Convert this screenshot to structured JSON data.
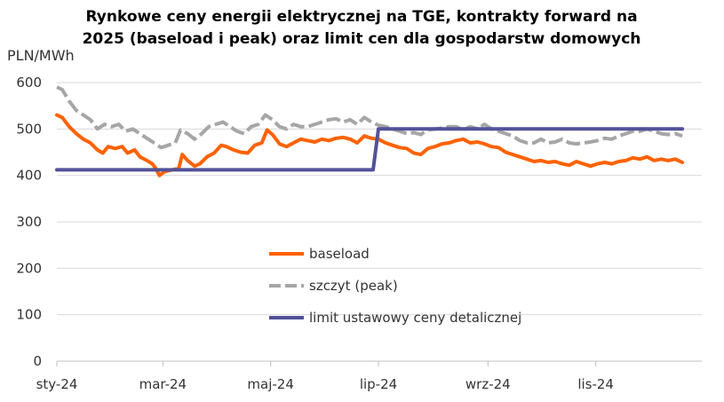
{
  "chart_data": {
    "type": "line",
    "title_lines": [
      "Rynkowe ceny energii elektrycznej na TGE, kontrakty forward na",
      "2025 (baseload i peak) oraz limit cen dla gospodarstw domowych"
    ],
    "ylabel": "PLN/MWh",
    "ylim": [
      0,
      600
    ],
    "yticks": [
      "0",
      "100",
      "200",
      "300",
      "400",
      "500",
      "600"
    ],
    "xlim": [
      "2024-01-01",
      "2024-12-31"
    ],
    "xticks": [
      {
        "label": "sty-24",
        "date": "2024-01-01"
      },
      {
        "label": "mar-24",
        "date": "2024-03-01"
      },
      {
        "label": "maj-24",
        "date": "2024-05-01"
      },
      {
        "label": "lip-24",
        "date": "2024-07-01"
      },
      {
        "label": "wrz-24",
        "date": "2024-09-01"
      },
      {
        "label": "lis-24",
        "date": "2024-11-01"
      }
    ],
    "legend_position": "center",
    "grid": "horizontal",
    "series": [
      {
        "name": "baseload",
        "color": "#ff6200",
        "style": "solid",
        "points": [
          [
            "2024-01-01",
            530
          ],
          [
            "2024-01-04",
            525
          ],
          [
            "2024-01-08",
            505
          ],
          [
            "2024-01-12",
            490
          ],
          [
            "2024-01-16",
            478
          ],
          [
            "2024-01-20",
            470
          ],
          [
            "2024-01-24",
            455
          ],
          [
            "2024-01-27",
            448
          ],
          [
            "2024-01-30",
            462
          ],
          [
            "2024-02-03",
            458
          ],
          [
            "2024-02-07",
            462
          ],
          [
            "2024-02-10",
            448
          ],
          [
            "2024-02-14",
            455
          ],
          [
            "2024-02-17",
            440
          ],
          [
            "2024-02-21",
            432
          ],
          [
            "2024-02-24",
            425
          ],
          [
            "2024-02-26",
            415
          ],
          [
            "2024-02-28",
            400
          ],
          [
            "2024-03-02",
            408
          ],
          [
            "2024-03-06",
            412
          ],
          [
            "2024-03-10",
            415
          ],
          [
            "2024-03-12",
            445
          ],
          [
            "2024-03-15",
            432
          ],
          [
            "2024-03-19",
            420
          ],
          [
            "2024-03-22",
            425
          ],
          [
            "2024-03-26",
            440
          ],
          [
            "2024-03-30",
            448
          ],
          [
            "2024-04-03",
            465
          ],
          [
            "2024-04-06",
            462
          ],
          [
            "2024-04-10",
            455
          ],
          [
            "2024-04-14",
            450
          ],
          [
            "2024-04-18",
            448
          ],
          [
            "2024-04-22",
            465
          ],
          [
            "2024-04-26",
            470
          ],
          [
            "2024-04-29",
            498
          ],
          [
            "2024-05-02",
            488
          ],
          [
            "2024-05-06",
            468
          ],
          [
            "2024-05-10",
            462
          ],
          [
            "2024-05-14",
            470
          ],
          [
            "2024-05-18",
            478
          ],
          [
            "2024-05-22",
            475
          ],
          [
            "2024-05-26",
            472
          ],
          [
            "2024-05-30",
            478
          ],
          [
            "2024-06-03",
            475
          ],
          [
            "2024-06-07",
            480
          ],
          [
            "2024-06-11",
            482
          ],
          [
            "2024-06-15",
            478
          ],
          [
            "2024-06-19",
            470
          ],
          [
            "2024-06-23",
            485
          ],
          [
            "2024-06-27",
            480
          ],
          [
            "2024-07-01",
            478
          ],
          [
            "2024-07-05",
            470
          ],
          [
            "2024-07-09",
            465
          ],
          [
            "2024-07-13",
            460
          ],
          [
            "2024-07-17",
            458
          ],
          [
            "2024-07-21",
            448
          ],
          [
            "2024-07-25",
            445
          ],
          [
            "2024-07-29",
            458
          ],
          [
            "2024-08-02",
            462
          ],
          [
            "2024-08-06",
            468
          ],
          [
            "2024-08-10",
            470
          ],
          [
            "2024-08-14",
            475
          ],
          [
            "2024-08-18",
            478
          ],
          [
            "2024-08-22",
            470
          ],
          [
            "2024-08-26",
            472
          ],
          [
            "2024-08-30",
            468
          ],
          [
            "2024-09-03",
            462
          ],
          [
            "2024-09-07",
            460
          ],
          [
            "2024-09-11",
            450
          ],
          [
            "2024-09-15",
            445
          ],
          [
            "2024-09-19",
            440
          ],
          [
            "2024-09-23",
            435
          ],
          [
            "2024-09-27",
            430
          ],
          [
            "2024-10-01",
            432
          ],
          [
            "2024-10-05",
            428
          ],
          [
            "2024-10-09",
            430
          ],
          [
            "2024-10-13",
            425
          ],
          [
            "2024-10-17",
            422
          ],
          [
            "2024-10-21",
            430
          ],
          [
            "2024-10-25",
            425
          ],
          [
            "2024-10-29",
            420
          ],
          [
            "2024-11-02",
            425
          ],
          [
            "2024-11-06",
            428
          ],
          [
            "2024-11-10",
            425
          ],
          [
            "2024-11-14",
            430
          ],
          [
            "2024-11-18",
            432
          ],
          [
            "2024-11-22",
            438
          ],
          [
            "2024-11-26",
            435
          ],
          [
            "2024-11-30",
            440
          ],
          [
            "2024-12-04",
            432
          ],
          [
            "2024-12-08",
            435
          ],
          [
            "2024-12-12",
            432
          ],
          [
            "2024-12-16",
            435
          ],
          [
            "2024-12-20",
            428
          ]
        ]
      },
      {
        "name": "szczyt (peak)",
        "color": "#a6a6a6",
        "style": "dashed",
        "points": [
          [
            "2024-01-01",
            590
          ],
          [
            "2024-01-04",
            585
          ],
          [
            "2024-01-08",
            560
          ],
          [
            "2024-01-12",
            540
          ],
          [
            "2024-01-16",
            530
          ],
          [
            "2024-01-20",
            520
          ],
          [
            "2024-01-24",
            500
          ],
          [
            "2024-01-28",
            510
          ],
          [
            "2024-02-01",
            505
          ],
          [
            "2024-02-05",
            510
          ],
          [
            "2024-02-09",
            495
          ],
          [
            "2024-02-13",
            500
          ],
          [
            "2024-02-17",
            490
          ],
          [
            "2024-02-21",
            480
          ],
          [
            "2024-02-25",
            470
          ],
          [
            "2024-02-29",
            460
          ],
          [
            "2024-03-04",
            465
          ],
          [
            "2024-03-08",
            470
          ],
          [
            "2024-03-11",
            498
          ],
          [
            "2024-03-15",
            490
          ],
          [
            "2024-03-19",
            478
          ],
          [
            "2024-03-23",
            490
          ],
          [
            "2024-03-27",
            505
          ],
          [
            "2024-03-31",
            510
          ],
          [
            "2024-04-04",
            515
          ],
          [
            "2024-04-08",
            505
          ],
          [
            "2024-04-12",
            495
          ],
          [
            "2024-04-16",
            490
          ],
          [
            "2024-04-20",
            505
          ],
          [
            "2024-04-24",
            510
          ],
          [
            "2024-04-28",
            530
          ],
          [
            "2024-05-02",
            520
          ],
          [
            "2024-05-06",
            505
          ],
          [
            "2024-05-10",
            500
          ],
          [
            "2024-05-14",
            510
          ],
          [
            "2024-05-18",
            505
          ],
          [
            "2024-05-22",
            505
          ],
          [
            "2024-05-26",
            510
          ],
          [
            "2024-05-30",
            515
          ],
          [
            "2024-06-03",
            520
          ],
          [
            "2024-06-07",
            522
          ],
          [
            "2024-06-11",
            515
          ],
          [
            "2024-06-15",
            520
          ],
          [
            "2024-06-19",
            510
          ],
          [
            "2024-06-23",
            525
          ],
          [
            "2024-06-27",
            515
          ],
          [
            "2024-07-01",
            508
          ],
          [
            "2024-07-05",
            505
          ],
          [
            "2024-07-09",
            500
          ],
          [
            "2024-07-13",
            495
          ],
          [
            "2024-07-17",
            490
          ],
          [
            "2024-07-21",
            492
          ],
          [
            "2024-07-25",
            488
          ],
          [
            "2024-07-29",
            498
          ],
          [
            "2024-08-02",
            500
          ],
          [
            "2024-08-06",
            502
          ],
          [
            "2024-08-10",
            505
          ],
          [
            "2024-08-14",
            505
          ],
          [
            "2024-08-18",
            498
          ],
          [
            "2024-08-22",
            505
          ],
          [
            "2024-08-26",
            500
          ],
          [
            "2024-08-30",
            510
          ],
          [
            "2024-09-03",
            500
          ],
          [
            "2024-09-07",
            495
          ],
          [
            "2024-09-11",
            490
          ],
          [
            "2024-09-15",
            485
          ],
          [
            "2024-09-19",
            475
          ],
          [
            "2024-09-23",
            470
          ],
          [
            "2024-09-27",
            470
          ],
          [
            "2024-10-01",
            478
          ],
          [
            "2024-10-05",
            470
          ],
          [
            "2024-10-09",
            472
          ],
          [
            "2024-10-13",
            478
          ],
          [
            "2024-10-17",
            470
          ],
          [
            "2024-10-21",
            468
          ],
          [
            "2024-10-25",
            470
          ],
          [
            "2024-10-29",
            472
          ],
          [
            "2024-11-02",
            475
          ],
          [
            "2024-11-06",
            480
          ],
          [
            "2024-11-10",
            478
          ],
          [
            "2024-11-14",
            485
          ],
          [
            "2024-11-18",
            490
          ],
          [
            "2024-11-22",
            495
          ],
          [
            "2024-11-26",
            495
          ],
          [
            "2024-11-30",
            500
          ],
          [
            "2024-12-04",
            495
          ],
          [
            "2024-12-08",
            490
          ],
          [
            "2024-12-12",
            488
          ],
          [
            "2024-12-16",
            490
          ],
          [
            "2024-12-20",
            485
          ]
        ]
      },
      {
        "name": "limit ustawowy ceny detalicznej",
        "color": "#525199",
        "style": "solid",
        "points": [
          [
            "2024-01-01",
            412
          ],
          [
            "2024-06-28",
            412
          ],
          [
            "2024-07-01",
            500
          ],
          [
            "2024-12-20",
            500
          ]
        ]
      }
    ]
  }
}
